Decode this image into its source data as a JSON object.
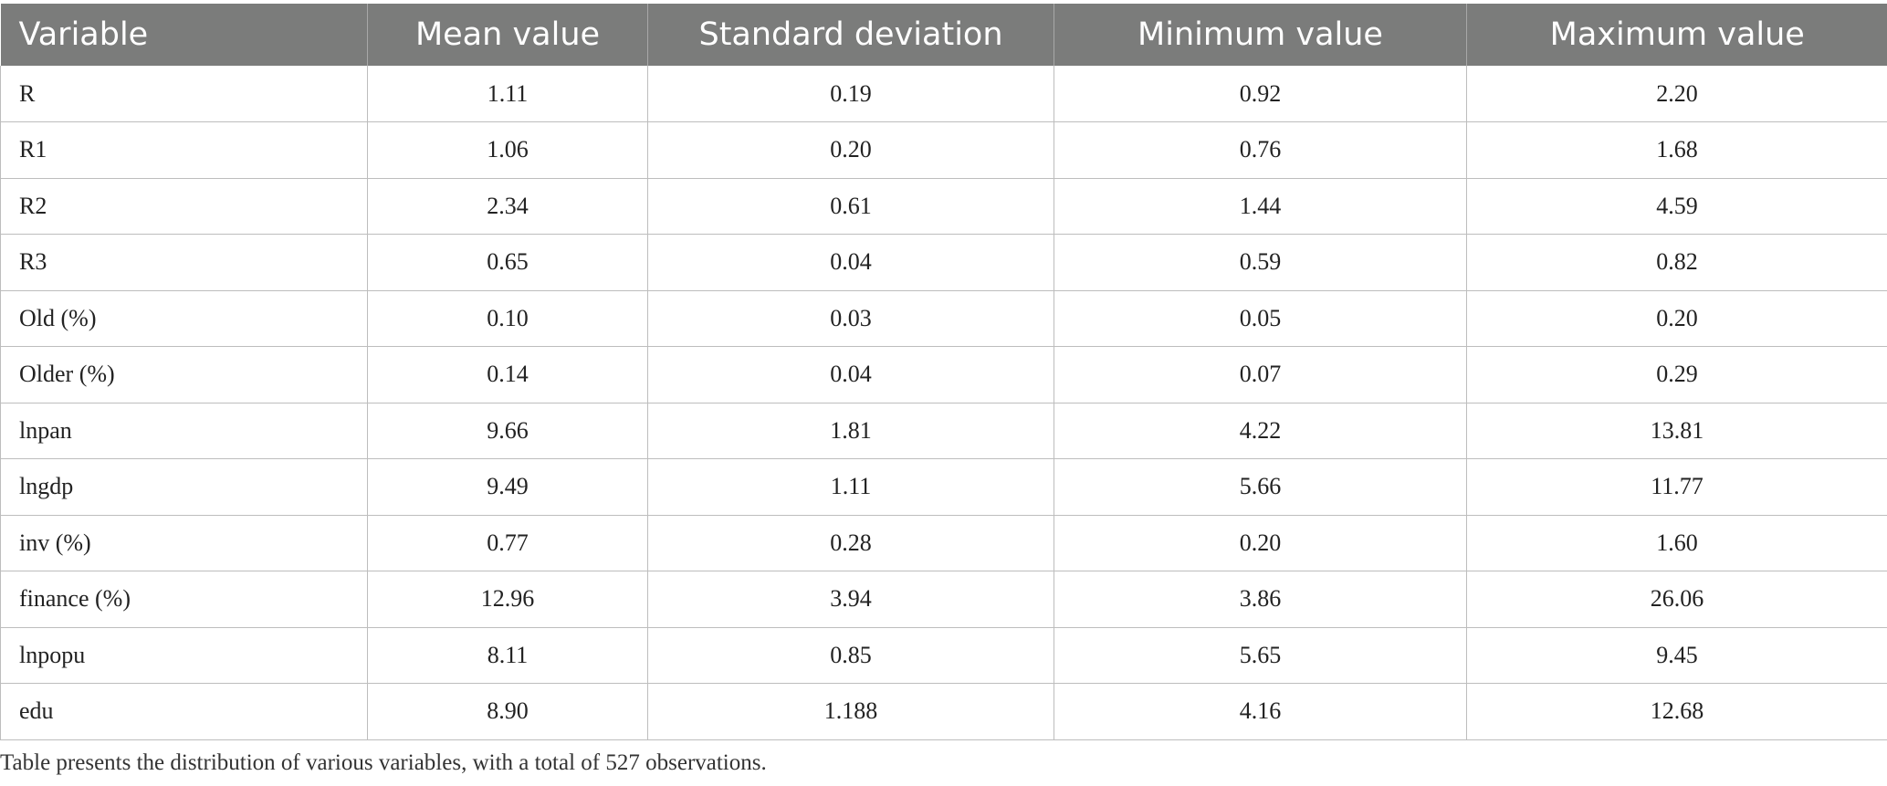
{
  "table": {
    "headers": [
      "Variable",
      "Mean value",
      "Standard deviation",
      "Minimum value",
      "Maximum value"
    ],
    "rows": [
      [
        "R",
        "1.11",
        "0.19",
        "0.92",
        "2.20"
      ],
      [
        "R1",
        "1.06",
        "0.20",
        "0.76",
        "1.68"
      ],
      [
        "R2",
        "2.34",
        "0.61",
        "1.44",
        "4.59"
      ],
      [
        "R3",
        "0.65",
        "0.04",
        "0.59",
        "0.82"
      ],
      [
        "Old (%)",
        "0.10",
        "0.03",
        "0.05",
        "0.20"
      ],
      [
        "Older (%)",
        "0.14",
        "0.04",
        "0.07",
        "0.29"
      ],
      [
        "lnpan",
        "9.66",
        "1.81",
        "4.22",
        "13.81"
      ],
      [
        "lngdp",
        "9.49",
        "1.11",
        "5.66",
        "11.77"
      ],
      [
        "inv (%)",
        "0.77",
        "0.28",
        "0.20",
        "1.60"
      ],
      [
        "finance (%)",
        "12.96",
        "3.94",
        "3.86",
        "26.06"
      ],
      [
        "lnpopu",
        "8.11",
        "0.85",
        "5.65",
        "9.45"
      ],
      [
        "edu",
        "8.90",
        "1.188",
        "4.16",
        "12.68"
      ]
    ]
  },
  "footnote": "Table presents the distribution of various variables, with a total of 527 observations."
}
